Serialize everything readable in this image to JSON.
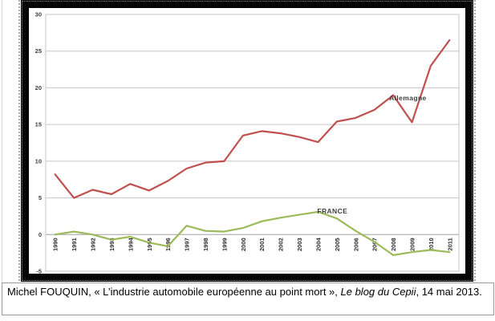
{
  "chart_data": {
    "type": "line",
    "x": [
      1990,
      1991,
      1992,
      1993,
      1994,
      1995,
      1996,
      1997,
      1998,
      1999,
      2000,
      2001,
      2002,
      2003,
      2004,
      2005,
      2006,
      2007,
      2008,
      2009,
      2010,
      2011
    ],
    "series": [
      {
        "name": "Allemagne",
        "color": "#C0504D",
        "values": [
          8.2,
          5.0,
          6.1,
          5.5,
          6.9,
          6.0,
          7.3,
          9.0,
          9.8,
          10.0,
          13.5,
          14.1,
          13.8,
          13.3,
          12.6,
          15.4,
          15.9,
          17.0,
          19.0,
          15.3,
          23.0,
          26.5
        ]
      },
      {
        "name": "FRANCE",
        "color": "#9BBB59",
        "values": [
          0.0,
          0.4,
          0.0,
          -0.7,
          -0.3,
          -1.1,
          -1.6,
          1.2,
          0.5,
          0.4,
          0.9,
          1.8,
          2.3,
          2.7,
          3.1,
          2.2,
          0.5,
          -1.0,
          -2.8,
          -2.4,
          -2.1,
          -2.4
        ]
      }
    ],
    "title": "",
    "xlabel": "",
    "ylabel": "",
    "ylim": [
      -5,
      30
    ],
    "yticks": [
      30,
      25,
      20,
      15,
      10,
      5,
      0,
      -5
    ],
    "grid": "horizontal",
    "legend_position": "none (inline series labels)",
    "annotations": [
      {
        "text": "Allemagne",
        "anchor_year": 2008,
        "anchor_value": 18.6,
        "dx": -5
      },
      {
        "text": "FRANCE",
        "anchor_year": 2004,
        "anchor_value": 3.2,
        "dx": -1
      }
    ],
    "colors": {
      "gridline": "#c6c6c6",
      "zero_axis": "#a0a0a0",
      "tick_label": "#3d3d3d",
      "year_label": "#2b2b2b",
      "series_label": "#3f3f3f"
    }
  },
  "caption": {
    "part1": "Michel FOUQUIN, « L’industrie automobile européenne au point mort », ",
    "italic": "Le blog du Cepii",
    "part2": ", 14 mai 2013."
  }
}
